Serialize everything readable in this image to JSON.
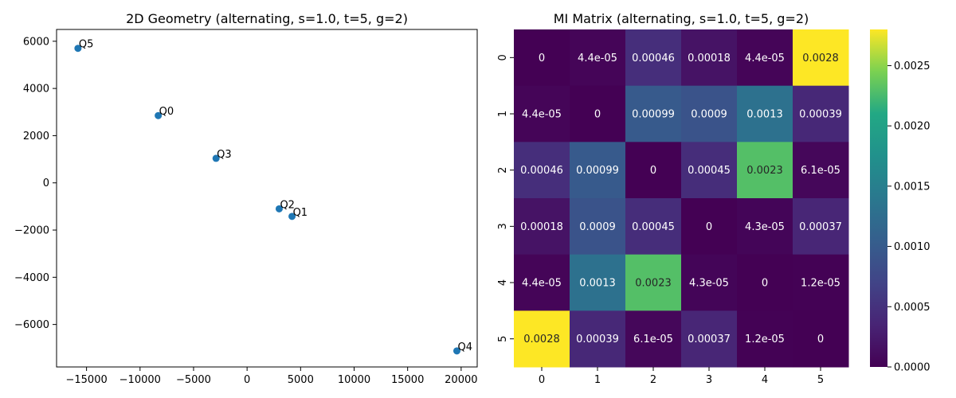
{
  "chart_data": [
    {
      "type": "scatter",
      "title": "2D Geometry (alternating, s=1.0, t=5, g=2)",
      "xlim": [
        -17800,
        21500
      ],
      "ylim": [
        -7800,
        6500
      ],
      "xticks": [
        -15000,
        -10000,
        -5000,
        0,
        5000,
        10000,
        15000,
        20000
      ],
      "yticks": [
        -6000,
        -4000,
        -2000,
        0,
        2000,
        4000,
        6000
      ],
      "marker_color": "#1f77b4",
      "points": [
        {
          "label": "Q0",
          "x": -8300,
          "y": 2850
        },
        {
          "label": "Q1",
          "x": 4200,
          "y": -1420
        },
        {
          "label": "Q2",
          "x": 3000,
          "y": -1100
        },
        {
          "label": "Q3",
          "x": -2900,
          "y": 1040
        },
        {
          "label": "Q4",
          "x": 19600,
          "y": -7120
        },
        {
          "label": "Q5",
          "x": -15800,
          "y": 5700
        }
      ]
    },
    {
      "type": "heatmap",
      "title": "MI Matrix (alternating, s=1.0, t=5, g=2)",
      "row_labels": [
        "0",
        "1",
        "2",
        "3",
        "4",
        "5"
      ],
      "col_labels": [
        "0",
        "1",
        "2",
        "3",
        "4",
        "5"
      ],
      "colormap": "viridis",
      "vmin": 0,
      "vmax": 0.0028,
      "colorbar_ticks": [
        "0.0000",
        "0.0005",
        "0.0010",
        "0.0015",
        "0.0020",
        "0.0025"
      ],
      "colorbar_tick_values": [
        0,
        0.0005,
        0.001,
        0.0015,
        0.002,
        0.0025
      ],
      "values": [
        [
          0,
          4.4e-05,
          0.00046,
          0.00018,
          4.4e-05,
          0.0028
        ],
        [
          4.4e-05,
          0,
          0.00099,
          0.0009,
          0.0013,
          0.00039
        ],
        [
          0.00046,
          0.00099,
          0,
          0.00045,
          0.0023,
          6.1e-05
        ],
        [
          0.00018,
          0.0009,
          0.00045,
          0,
          4.3e-05,
          0.00037
        ],
        [
          4.4e-05,
          0.0013,
          0.0023,
          4.3e-05,
          0,
          1.2e-05
        ],
        [
          0.0028,
          0.00039,
          6.1e-05,
          0.00037,
          1.2e-05,
          0
        ]
      ],
      "annotations": [
        [
          "0",
          "4.4e-05",
          "0.00046",
          "0.00018",
          "4.4e-05",
          "0.0028"
        ],
        [
          "4.4e-05",
          "0",
          "0.00099",
          "0.0009",
          "0.0013",
          "0.00039"
        ],
        [
          "0.00046",
          "0.00099",
          "0",
          "0.00045",
          "0.0023",
          "6.1e-05"
        ],
        [
          "0.00018",
          "0.0009",
          "0.00045",
          "0",
          "4.3e-05",
          "0.00037"
        ],
        [
          "4.4e-05",
          "0.0013",
          "0.0023",
          "4.3e-05",
          "0",
          "1.2e-05"
        ],
        [
          "0.0028",
          "0.00039",
          "6.1e-05",
          "0.00037",
          "1.2e-05",
          "0"
        ]
      ]
    }
  ]
}
